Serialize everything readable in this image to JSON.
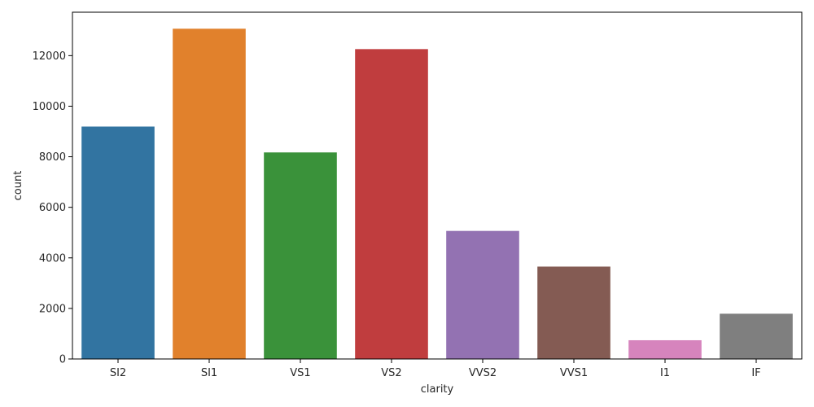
{
  "chart_data": {
    "type": "bar",
    "title": "",
    "xlabel": "clarity",
    "ylabel": "count",
    "categories": [
      "SI2",
      "SI1",
      "VS1",
      "VS2",
      "VVS2",
      "VVS1",
      "I1",
      "IF"
    ],
    "values": [
      9194,
      13065,
      8171,
      12258,
      5066,
      3655,
      741,
      1790
    ],
    "colors": [
      "#3274a1",
      "#e1812c",
      "#3a923a",
      "#c03d3e",
      "#9372b2",
      "#845b53",
      "#d684bd",
      "#7f7f7f"
    ],
    "ylim": [
      0,
      13718
    ],
    "yticks": [
      0,
      2000,
      4000,
      6000,
      8000,
      10000,
      12000
    ],
    "ytick_labels": [
      "0",
      "2000",
      "4000",
      "6000",
      "8000",
      "10000",
      "12000"
    ],
    "grid": false,
    "legend": "none"
  }
}
